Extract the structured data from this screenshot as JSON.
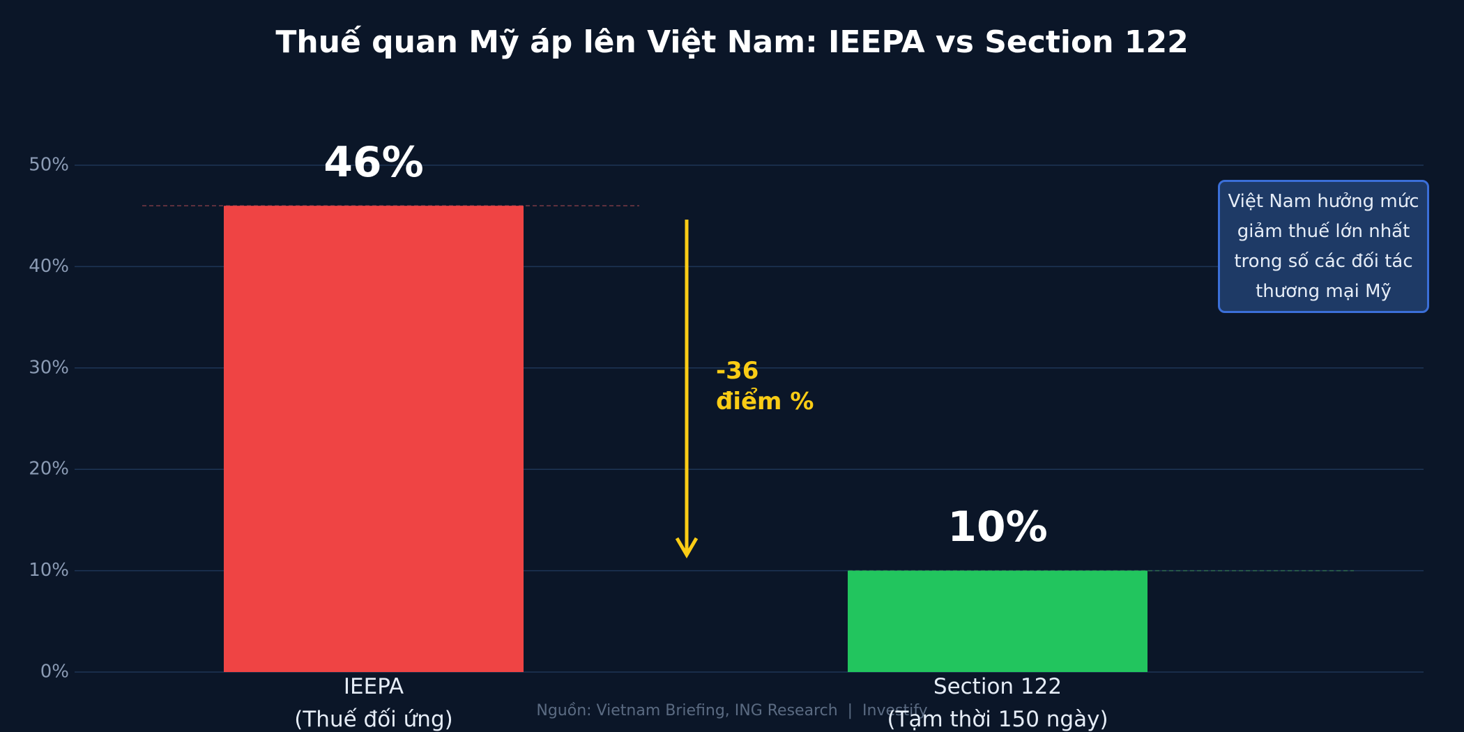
{
  "chart_data": {
    "type": "bar",
    "title": "Thuế quan Mỹ áp lên Việt Nam: IEEPA vs Section 122",
    "categories": [
      "IEEPA\n(Thuế đối ứng)",
      "Section 122\n(Tạm thời 150 ngày)"
    ],
    "values": [
      46,
      10
    ],
    "value_labels": [
      "46%",
      "10%"
    ],
    "colors": [
      "#ef4444",
      "#22c55e"
    ],
    "ylim": [
      0,
      55
    ],
    "yticks": [
      {
        "value": 0,
        "label": "0%"
      },
      {
        "value": 10,
        "label": "10%"
      },
      {
        "value": 20,
        "label": "20%"
      },
      {
        "value": 30,
        "label": "30%"
      },
      {
        "value": 40,
        "label": "40%"
      },
      {
        "value": 50,
        "label": "50%"
      }
    ],
    "grid": true,
    "annotation": "-36\nđiểm %",
    "note": "Việt Nam hưởng mức giảm thuế lớn nhất trong số các đối tác thương mại Mỹ",
    "source": "Nguồn: Vietnam Briefing, ING Research  |  Investify"
  }
}
